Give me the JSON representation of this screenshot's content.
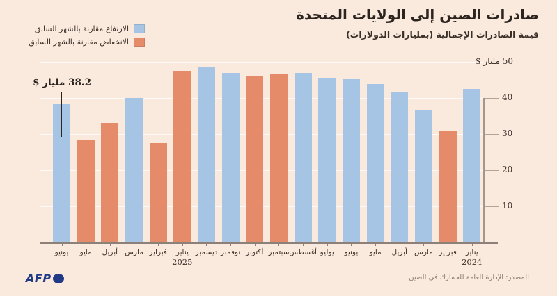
{
  "title": "صادرات الصين إلى الولايات المتحدة",
  "subtitle": "قيمة الصادرات الإجمالية (بمليارات الدولارات)",
  "legend": {
    "up_label": "الارتفاع مقارنة بالشهر السابق",
    "down_label": "الانخفاض مقارنة بالشهر السابق"
  },
  "annotation": {
    "text": "38.2 مليار $"
  },
  "source": "المصدر: الإدارة العامة للجمارك في الصين",
  "logo": {
    "text": "AFP",
    "globe_icon": "globe-circle"
  },
  "colors": {
    "background": "#fae9dd",
    "up": "#a6c4e3",
    "down": "#e68b6a",
    "axis": "#8c8078",
    "navy": "#213a85"
  },
  "chart_data": {
    "type": "bar",
    "title": "صادرات الصين إلى الولايات المتحدة",
    "subtitle": "قيمة الصادرات الإجمالية (بمليارات الدولارات)",
    "ylim": [
      0,
      50
    ],
    "yticks": [
      10,
      20,
      30,
      40,
      50
    ],
    "ytick_top_label": "50 مليار $",
    "grid": true,
    "legend_position": "top-left",
    "x_axis_order": "newest month on the left, oldest on the right (RTL time axis)",
    "annotated_point": {
      "month": "يونيو 2025",
      "value": 38.2,
      "label": "38.2 مليار $"
    },
    "bars": [
      {
        "month": "يونيو",
        "year": "",
        "value": 38.2,
        "change": "up"
      },
      {
        "month": "مايو",
        "year": "",
        "value": 28.5,
        "change": "down"
      },
      {
        "month": "أبريل",
        "year": "",
        "value": 33.0,
        "change": "down"
      },
      {
        "month": "مارس",
        "year": "",
        "value": 40.0,
        "change": "up"
      },
      {
        "month": "فبراير",
        "year": "",
        "value": 27.5,
        "change": "down"
      },
      {
        "month": "يناير",
        "year": "2025",
        "value": 47.5,
        "change": "down"
      },
      {
        "month": "ديسمبر",
        "year": "",
        "value": 48.5,
        "change": "up"
      },
      {
        "month": "نوفمبر",
        "year": "",
        "value": 47.0,
        "change": "up"
      },
      {
        "month": "أكتوبر",
        "year": "",
        "value": 46.2,
        "change": "down"
      },
      {
        "month": "سبتمبر",
        "year": "",
        "value": 46.5,
        "change": "down"
      },
      {
        "month": "أغسطس",
        "year": "",
        "value": 47.0,
        "change": "up"
      },
      {
        "month": "يوليو",
        "year": "",
        "value": 45.5,
        "change": "up"
      },
      {
        "month": "يونيو",
        "year": "",
        "value": 45.2,
        "change": "up"
      },
      {
        "month": "مايو",
        "year": "",
        "value": 43.8,
        "change": "up"
      },
      {
        "month": "أبريل",
        "year": "",
        "value": 41.5,
        "change": "up"
      },
      {
        "month": "مارس",
        "year": "",
        "value": 36.5,
        "change": "up"
      },
      {
        "month": "فبراير",
        "year": "",
        "value": 31.0,
        "change": "down"
      },
      {
        "month": "يناير",
        "year": "2024",
        "value": 42.5,
        "change": "up"
      }
    ]
  }
}
